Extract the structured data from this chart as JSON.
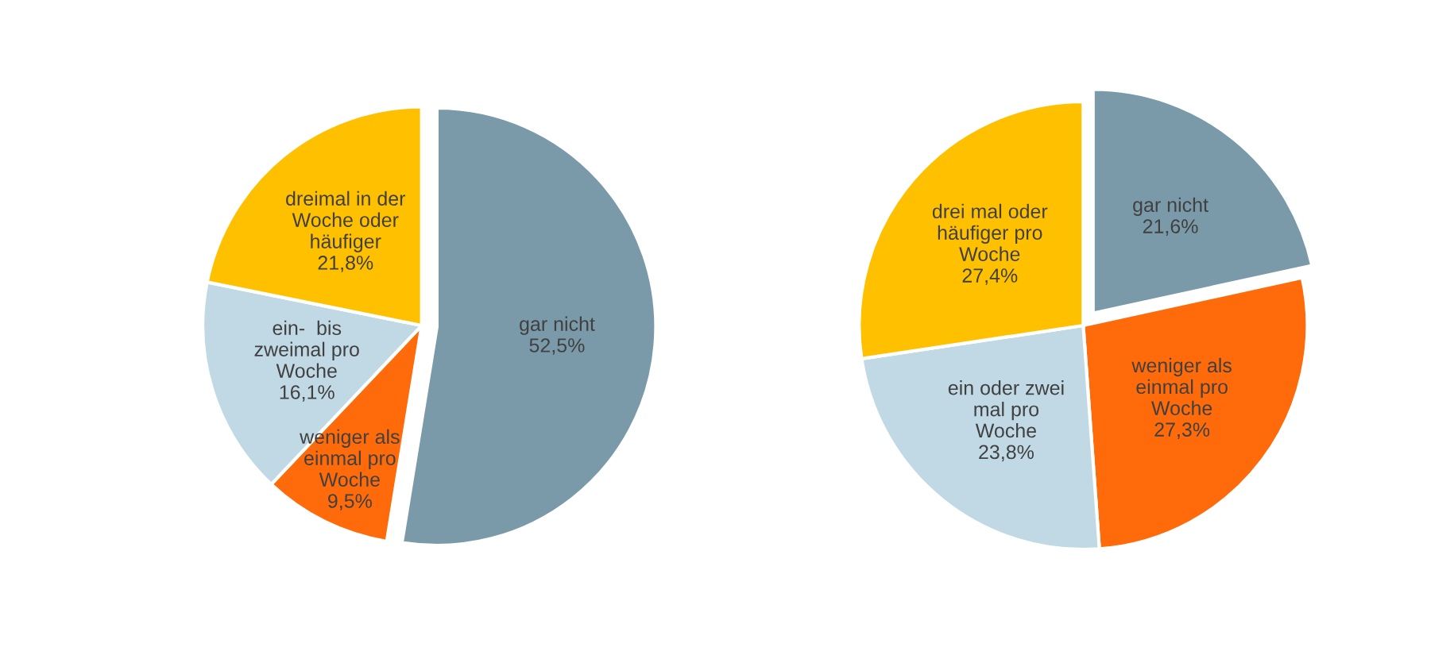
{
  "chart_data": [
    {
      "type": "pie",
      "categories": [
        "gar nicht",
        "weniger als\neinmal pro\nWoche",
        "ein-  bis\nzweimal pro\nWoche",
        "dreimal in der\nWoche oder\nhäufiger"
      ],
      "values": [
        52.5,
        9.5,
        16.1,
        21.8
      ],
      "value_labels": [
        "52,5%",
        "9,5%",
        "16,1%",
        "21,8%"
      ],
      "colors": [
        "#7a9aaa",
        "#ff6a0a",
        "#c0d9e5",
        "#ffc000"
      ]
    },
    {
      "type": "pie",
      "categories": [
        "gar nicht",
        "weniger als\neinmal pro\nWoche",
        "ein oder zwei\nmal pro\nWoche",
        "drei mal oder\nhäufiger pro\nWoche"
      ],
      "values": [
        21.6,
        27.3,
        23.8,
        27.4
      ],
      "value_labels": [
        "21,6%",
        "27,3%",
        "23,8%",
        "27,4%"
      ],
      "colors": [
        "#7a9aaa",
        "#ff6a0a",
        "#c0d9e5",
        "#ffc000"
      ]
    }
  ]
}
